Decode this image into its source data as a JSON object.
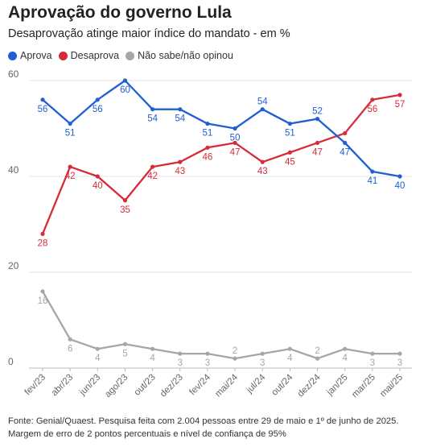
{
  "header": {
    "title": "Aprovação do governo Lula",
    "subtitle": "Desaprovação atinge maior índice do mandato - em %"
  },
  "footer": {
    "source": "Fonte: Genial/Quaest. Pesquisa feita com 2.004 pessoas entre 29 de maio e 1º de junho de 2025.",
    "margin": "Margem de erro de 2 pontos percentuais e nível de confiança de 95%"
  },
  "colors": {
    "aprova": "#1f5fd1",
    "desaprova": "#d62c3a",
    "nao_sabe": "#a6a6a6",
    "grid": "#e6e6e6",
    "axis_text": "#666666"
  },
  "chart_data": {
    "type": "line",
    "x": [
      "fev/23",
      "abr/23",
      "jun/23",
      "ago/23",
      "out/23",
      "dez/23",
      "fev/24",
      "mai/24",
      "jul/24",
      "out/24",
      "dez/24",
      "jan/25",
      "mar/25",
      "mai/25"
    ],
    "ylim": [
      0,
      60
    ],
    "yticks": [
      0,
      20,
      40,
      60
    ],
    "grid": true,
    "legend_position": "top-left",
    "series": [
      {
        "key": "aprova",
        "name": "Aprova",
        "color": "#1f5fd1",
        "values": [
          56,
          51,
          56,
          60,
          54,
          54,
          51,
          50,
          54,
          51,
          52,
          47,
          41,
          40
        ],
        "label_pos": [
          "below",
          "below",
          "below",
          "below",
          "below",
          "below",
          "below",
          "below",
          "above",
          "below",
          "above",
          "below",
          "below",
          "below"
        ]
      },
      {
        "key": "desaprova",
        "name": "Desaprova",
        "color": "#d62c3a",
        "values": [
          28,
          42,
          40,
          35,
          42,
          43,
          46,
          47,
          43,
          45,
          47,
          49,
          56,
          57
        ],
        "label_pos": [
          "below",
          "below",
          "below",
          "below",
          "below",
          "below",
          "below",
          "below",
          "below",
          "below",
          "below",
          "none",
          "below",
          "below"
        ]
      },
      {
        "key": "nao_sabe",
        "name": "Não sabe/não opinou",
        "color": "#a6a6a6",
        "values": [
          16,
          6,
          4,
          5,
          4,
          3,
          3,
          2,
          3,
          4,
          2,
          4,
          3,
          3
        ],
        "label_pos": [
          "below",
          "below",
          "below",
          "below",
          "below",
          "below",
          "below",
          "above",
          "below",
          "below",
          "above",
          "below",
          "below",
          "below"
        ]
      }
    ]
  }
}
